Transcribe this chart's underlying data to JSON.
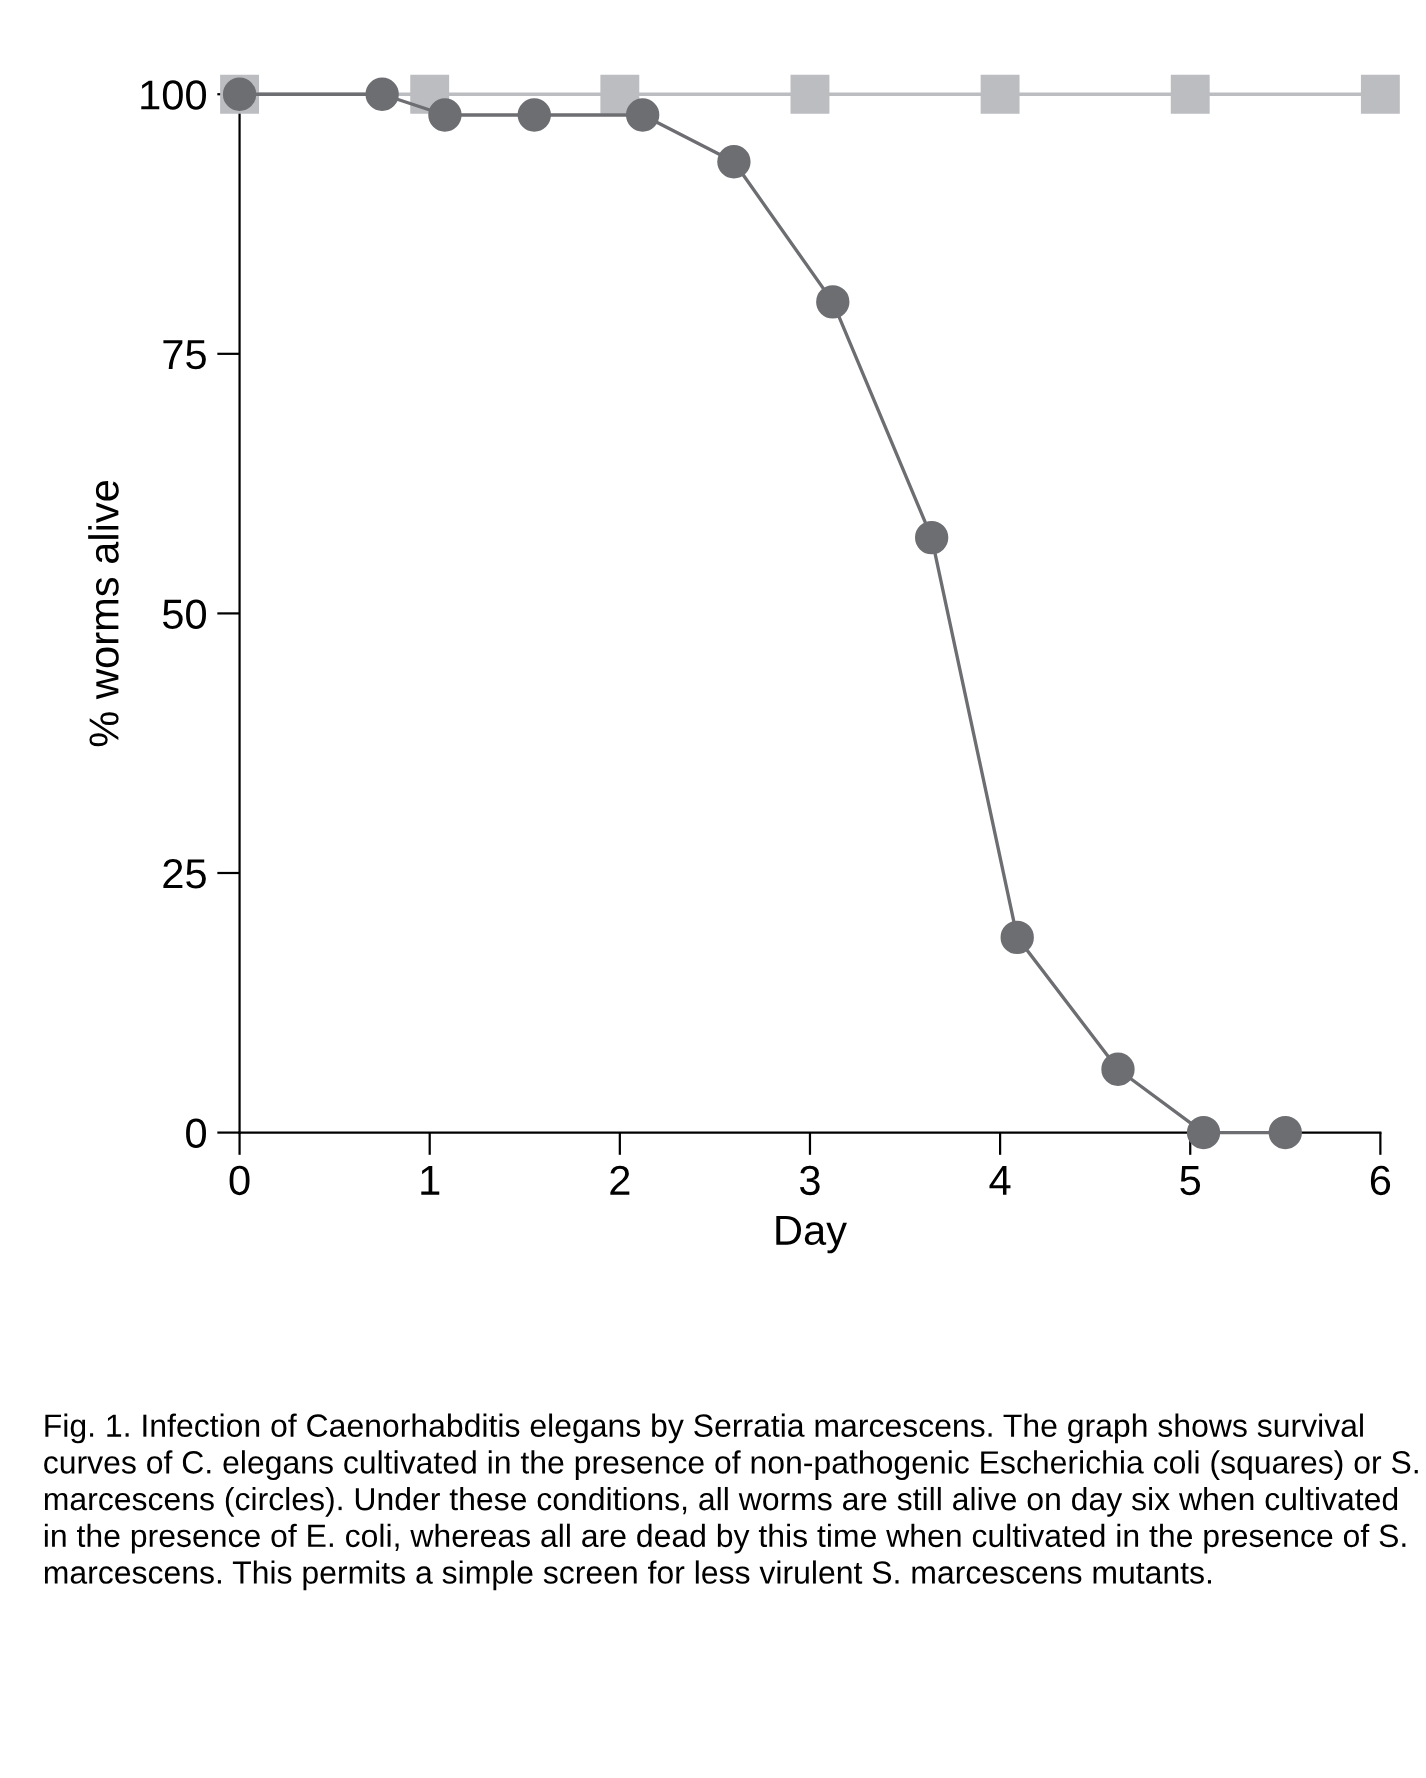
{
  "chart_data": {
    "type": "line",
    "xlabel": "Day",
    "ylabel": "% worms alive",
    "xlim": [
      0,
      6
    ],
    "ylim": [
      0,
      100
    ],
    "xticks": [
      0,
      1,
      2,
      3,
      4,
      5,
      6
    ],
    "yticks": [
      0,
      25,
      50,
      75,
      100
    ],
    "grid": false,
    "legend": false,
    "series": [
      {
        "color": "#bcbdc1",
        "marker": "square",
        "x": [
          0,
          1,
          2,
          3,
          4,
          5,
          6
        ],
        "values": [
          100,
          100,
          100,
          100,
          100,
          100,
          100
        ]
      },
      {
        "color": "#6d6e72",
        "marker": "circle",
        "x": [
          0,
          0.75,
          1.08,
          1.55,
          2.12,
          2.6,
          3.12,
          3.64,
          4.09,
          4.62,
          5.07,
          5.5
        ],
        "values": [
          100,
          100,
          98,
          98,
          98,
          93.5,
          80,
          57.3,
          18.8,
          6.1,
          0,
          0
        ]
      }
    ],
    "annotations": [
      "Fig. 1. Infection of Caenorhabditis elegans by Serratia marcescens. The graph shows survival curves of C. elegans cultivated in the presence of non-pathogenic Escherichia coli (squares) or S. marcescens (circles). Under these conditions, all worms are still alive on day six when cultivated in the presence of E. coli, whereas all are dead by this time when cultivated in the presence of S. marcescens. This permits a simple screen for less virulent S. marcescens mutants."
    ]
  }
}
